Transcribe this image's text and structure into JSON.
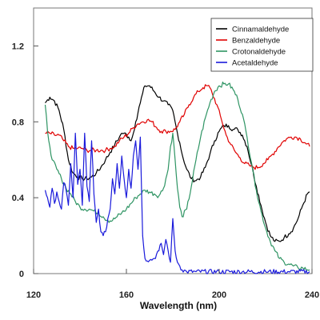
{
  "chart_data": {
    "type": "line",
    "title": "",
    "xlabel": "Wavelength (nm)",
    "ylabel": "",
    "xlim": [
      120,
      240
    ],
    "ylim": [
      0,
      1.4
    ],
    "x_ticks": [
      120,
      160,
      200,
      240
    ],
    "y_ticks": [
      0,
      0.4,
      0.8,
      1.2
    ],
    "x_tick_labels": [
      "120",
      "160",
      "200",
      "240"
    ],
    "y_tick_labels": [
      "0",
      "0.4",
      "0.8",
      "1.2"
    ],
    "grid": false,
    "legend_position": "top-right",
    "series": [
      {
        "name": "Cinnamaldehyde",
        "color": "#000000",
        "points": [
          [
            125,
            0.9
          ],
          [
            127,
            0.93
          ],
          [
            129,
            0.91
          ],
          [
            131,
            0.86
          ],
          [
            133,
            0.76
          ],
          [
            135,
            0.6
          ],
          [
            137,
            0.53
          ],
          [
            139,
            0.51
          ],
          [
            141,
            0.5
          ],
          [
            143,
            0.5
          ],
          [
            145,
            0.51
          ],
          [
            147,
            0.53
          ],
          [
            149,
            0.56
          ],
          [
            151,
            0.6
          ],
          [
            153,
            0.64
          ],
          [
            155,
            0.68
          ],
          [
            157,
            0.72
          ],
          [
            158,
            0.74
          ],
          [
            159,
            0.74
          ],
          [
            161,
            0.72
          ],
          [
            162,
            0.7
          ],
          [
            163,
            0.74
          ],
          [
            164,
            0.8
          ],
          [
            166,
            0.9
          ],
          [
            167,
            0.95
          ],
          [
            168,
            0.99
          ],
          [
            170,
            0.99
          ],
          [
            172,
            0.96
          ],
          [
            174,
            0.93
          ],
          [
            176,
            0.91
          ],
          [
            178,
            0.89
          ],
          [
            180,
            0.86
          ],
          [
            181,
            0.8
          ],
          [
            182,
            0.74
          ],
          [
            183,
            0.69
          ],
          [
            184,
            0.63
          ],
          [
            186,
            0.55
          ],
          [
            188,
            0.5
          ],
          [
            190,
            0.49
          ],
          [
            192,
            0.51
          ],
          [
            194,
            0.56
          ],
          [
            196,
            0.63
          ],
          [
            198,
            0.7
          ],
          [
            200,
            0.75
          ],
          [
            202,
            0.78
          ],
          [
            204,
            0.78
          ],
          [
            206,
            0.76
          ],
          [
            208,
            0.76
          ],
          [
            210,
            0.73
          ],
          [
            212,
            0.67
          ],
          [
            214,
            0.57
          ],
          [
            216,
            0.46
          ],
          [
            218,
            0.36
          ],
          [
            220,
            0.27
          ],
          [
            222,
            0.2
          ],
          [
            224,
            0.17
          ],
          [
            226,
            0.17
          ],
          [
            228,
            0.19
          ],
          [
            230,
            0.21
          ],
          [
            232,
            0.24
          ],
          [
            234,
            0.29
          ],
          [
            236,
            0.36
          ],
          [
            238,
            0.42
          ],
          [
            239,
            0.43
          ]
        ]
      },
      {
        "name": "Benzaldehyde",
        "color": "#e00000",
        "points": [
          [
            125,
            0.74
          ],
          [
            127,
            0.74
          ],
          [
            129,
            0.73
          ],
          [
            131,
            0.73
          ],
          [
            133,
            0.7
          ],
          [
            135,
            0.67
          ],
          [
            137,
            0.66
          ],
          [
            139,
            0.66
          ],
          [
            141,
            0.66
          ],
          [
            143,
            0.65
          ],
          [
            145,
            0.65
          ],
          [
            147,
            0.65
          ],
          [
            149,
            0.65
          ],
          [
            151,
            0.65
          ],
          [
            153,
            0.66
          ],
          [
            155,
            0.67
          ],
          [
            157,
            0.7
          ],
          [
            159,
            0.72
          ],
          [
            161,
            0.74
          ],
          [
            163,
            0.77
          ],
          [
            165,
            0.79
          ],
          [
            167,
            0.8
          ],
          [
            169,
            0.81
          ],
          [
            171,
            0.8
          ],
          [
            173,
            0.77
          ],
          [
            175,
            0.75
          ],
          [
            177,
            0.75
          ],
          [
            179,
            0.75
          ],
          [
            181,
            0.76
          ],
          [
            183,
            0.8
          ],
          [
            185,
            0.84
          ],
          [
            187,
            0.89
          ],
          [
            189,
            0.93
          ],
          [
            191,
            0.96
          ],
          [
            193,
            0.98
          ],
          [
            195,
            0.99
          ],
          [
            196,
            0.98
          ],
          [
            197,
            0.95
          ],
          [
            199,
            0.89
          ],
          [
            201,
            0.81
          ],
          [
            203,
            0.73
          ],
          [
            205,
            0.68
          ],
          [
            207,
            0.64
          ],
          [
            209,
            0.61
          ],
          [
            211,
            0.58
          ],
          [
            213,
            0.57
          ],
          [
            215,
            0.56
          ],
          [
            217,
            0.56
          ],
          [
            219,
            0.58
          ],
          [
            221,
            0.6
          ],
          [
            223,
            0.63
          ],
          [
            225,
            0.66
          ],
          [
            227,
            0.69
          ],
          [
            229,
            0.71
          ],
          [
            231,
            0.72
          ],
          [
            233,
            0.72
          ],
          [
            235,
            0.71
          ],
          [
            237,
            0.69
          ],
          [
            239,
            0.67
          ]
        ]
      },
      {
        "name": "Crotonaldehyde",
        "color": "#2e9463",
        "points": [
          [
            125,
            0.89
          ],
          [
            126,
            0.75
          ],
          [
            127,
            0.67
          ],
          [
            128,
            0.6
          ],
          [
            130,
            0.55
          ],
          [
            132,
            0.5
          ],
          [
            134,
            0.45
          ],
          [
            136,
            0.42
          ],
          [
            138,
            0.38
          ],
          [
            140,
            0.35
          ],
          [
            142,
            0.34
          ],
          [
            144,
            0.34
          ],
          [
            146,
            0.33
          ],
          [
            148,
            0.32
          ],
          [
            150,
            0.3
          ],
          [
            152,
            0.28
          ],
          [
            154,
            0.28
          ],
          [
            156,
            0.3
          ],
          [
            158,
            0.32
          ],
          [
            160,
            0.34
          ],
          [
            162,
            0.37
          ],
          [
            164,
            0.4
          ],
          [
            166,
            0.42
          ],
          [
            168,
            0.44
          ],
          [
            170,
            0.43
          ],
          [
            172,
            0.42
          ],
          [
            174,
            0.41
          ],
          [
            176,
            0.45
          ],
          [
            178,
            0.55
          ],
          [
            179,
            0.67
          ],
          [
            180,
            0.74
          ],
          [
            181,
            0.6
          ],
          [
            182,
            0.45
          ],
          [
            183,
            0.35
          ],
          [
            184,
            0.3
          ],
          [
            186,
            0.34
          ],
          [
            188,
            0.46
          ],
          [
            190,
            0.6
          ],
          [
            192,
            0.72
          ],
          [
            194,
            0.82
          ],
          [
            196,
            0.9
          ],
          [
            198,
            0.96
          ],
          [
            200,
            0.99
          ],
          [
            202,
            1.0
          ],
          [
            204,
            1.0
          ],
          [
            206,
            0.97
          ],
          [
            208,
            0.92
          ],
          [
            210,
            0.84
          ],
          [
            212,
            0.72
          ],
          [
            214,
            0.58
          ],
          [
            216,
            0.44
          ],
          [
            218,
            0.33
          ],
          [
            220,
            0.24
          ],
          [
            222,
            0.17
          ],
          [
            224,
            0.12
          ],
          [
            226,
            0.08
          ],
          [
            228,
            0.06
          ],
          [
            230,
            0.05
          ],
          [
            232,
            0.04
          ],
          [
            234,
            0.03
          ],
          [
            236,
            0.03
          ],
          [
            238,
            0.02
          ],
          [
            239,
            0.02
          ]
        ]
      },
      {
        "name": "Acetaldehyde",
        "color": "#1a1adb",
        "points": [
          [
            125,
            0.44
          ],
          [
            126,
            0.4
          ],
          [
            127,
            0.35
          ],
          [
            128,
            0.45
          ],
          [
            129,
            0.37
          ],
          [
            130,
            0.43
          ],
          [
            131,
            0.38
          ],
          [
            132,
            0.34
          ],
          [
            133,
            0.48
          ],
          [
            134,
            0.44
          ],
          [
            135,
            0.36
          ],
          [
            136,
            0.58
          ],
          [
            137,
            0.4
          ],
          [
            138,
            0.74
          ],
          [
            139,
            0.47
          ],
          [
            140,
            0.55
          ],
          [
            141,
            0.36
          ],
          [
            142,
            0.74
          ],
          [
            143,
            0.46
          ],
          [
            144,
            0.38
          ],
          [
            145,
            0.7
          ],
          [
            146,
            0.42
          ],
          [
            147,
            0.27
          ],
          [
            148,
            0.34
          ],
          [
            149,
            0.22
          ],
          [
            150,
            0.2
          ],
          [
            151,
            0.22
          ],
          [
            152,
            0.29
          ],
          [
            153,
            0.34
          ],
          [
            154,
            0.5
          ],
          [
            155,
            0.42
          ],
          [
            156,
            0.58
          ],
          [
            157,
            0.45
          ],
          [
            158,
            0.62
          ],
          [
            159,
            0.5
          ],
          [
            160,
            0.4
          ],
          [
            161,
            0.55
          ],
          [
            162,
            0.45
          ],
          [
            163,
            0.62
          ],
          [
            164,
            0.7
          ],
          [
            165,
            0.55
          ],
          [
            166,
            0.72
          ],
          [
            167,
            0.2
          ],
          [
            168,
            0.08
          ],
          [
            170,
            0.07
          ],
          [
            172,
            0.08
          ],
          [
            174,
            0.12
          ],
          [
            175,
            0.16
          ],
          [
            176,
            0.1
          ],
          [
            177,
            0.18
          ],
          [
            178,
            0.12
          ],
          [
            179,
            0.06
          ],
          [
            180,
            0.29
          ],
          [
            181,
            0.12
          ],
          [
            182,
            0.06
          ],
          [
            183,
            0.04
          ],
          [
            184,
            0.02
          ],
          [
            186,
            0.01
          ],
          [
            190,
            0.01
          ],
          [
            200,
            0.01
          ],
          [
            210,
            0.01
          ],
          [
            220,
            0.01
          ],
          [
            230,
            0.01
          ],
          [
            239,
            0.01
          ]
        ]
      }
    ]
  }
}
